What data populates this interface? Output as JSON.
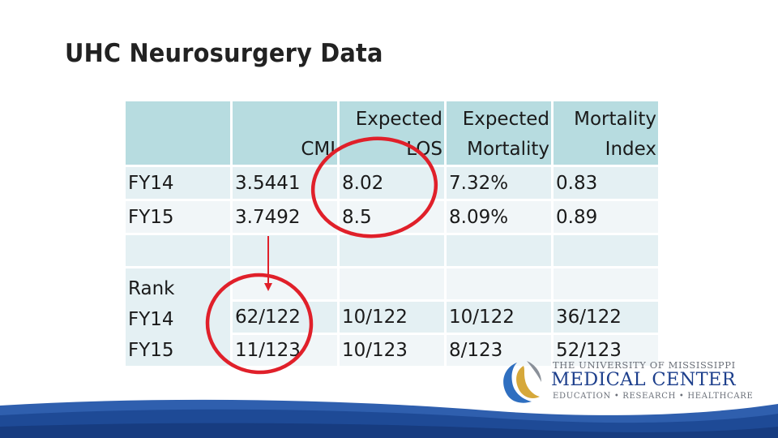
{
  "title": "UHC Neurosurgery Data",
  "table": {
    "headers": {
      "cmi": [
        "CMI"
      ],
      "expected_los": [
        "Expected",
        "LOS"
      ],
      "expected_mortality": [
        "Expected",
        "Mortality"
      ],
      "mortality_index": [
        "Mortality",
        "Index"
      ]
    },
    "rows": [
      {
        "label": "FY14",
        "cmi": "3.5441",
        "expected_los": "8.02",
        "expected_mortality": "7.32%",
        "mortality_index": "0.83"
      },
      {
        "label": "FY15",
        "cmi": "3.7492",
        "expected_los": "8.5",
        "expected_mortality": "8.09%",
        "mortality_index": "0.89"
      }
    ],
    "rank_block": {
      "labels": [
        "Rank",
        "FY14",
        "FY15"
      ],
      "rows": [
        {
          "cmi": "62/122",
          "expected_los": "10/122",
          "expected_mortality": "10/122",
          "mortality_index": "36/122"
        },
        {
          "cmi": "11/123",
          "expected_los": "10/123",
          "expected_mortality": "8/123",
          "mortality_index": "52/123"
        }
      ]
    }
  },
  "logo": {
    "line1": "THE UNIVERSITY OF MISSISSIPPI",
    "line2": "MEDICAL CENTER",
    "line3": "EDUCATION  •  RESEARCH  •  HEALTHCARE"
  },
  "colors": {
    "header_fill": "#b7dce0",
    "row_fill": "#e4f0f3",
    "annotation_red": "#e0202a",
    "logo_blue": "#1d3f8c",
    "band_blue": "#2f5fae"
  }
}
